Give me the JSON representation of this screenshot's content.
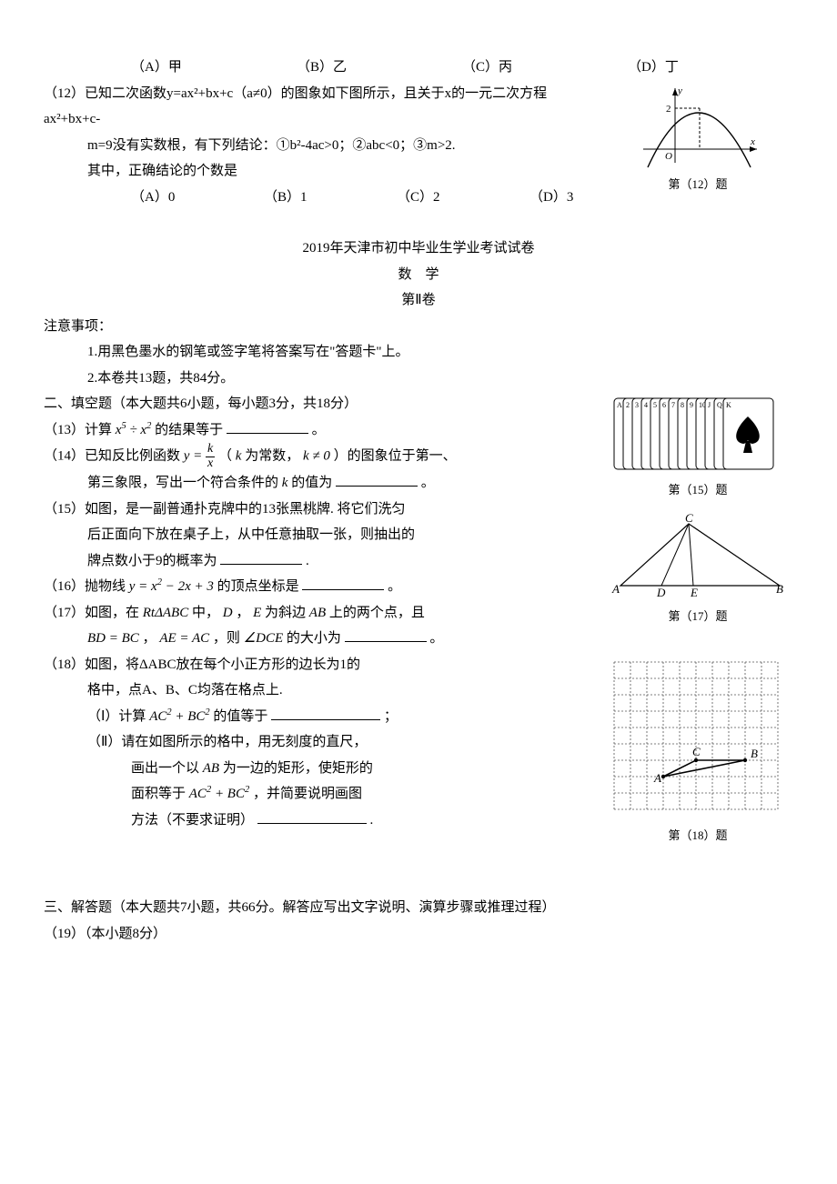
{
  "q11_choices": {
    "a": "（A）甲",
    "b": "（B）乙",
    "c": "（C）丙",
    "d": "（D）丁"
  },
  "q12": {
    "stem1": "（12）已知二次函数y=ax²+bx+c（a≠0）的图象如下图所示，且关于x的一元二次方程ax²+bx+c-",
    "stem2": "m=9没有实数根，有下列结论：①b²-4ac>0；②abc<0；③m>2.",
    "stem3": "其中，正确结论的个数是",
    "a": "（A）0",
    "b": "（B）1",
    "c": "（C）2",
    "d": "（D）3",
    "caption": "第（12）题"
  },
  "header": {
    "l1": "2019年天津市初中毕业生学业考试试卷",
    "l2": "数　学",
    "l3": "第Ⅱ卷"
  },
  "notice": {
    "title": "注意事项：",
    "i1": "1.用黑色墨水的钢笔或签字笔将答案写在\"答题卡\"上。",
    "i2": "2.本卷共13题，共84分。"
  },
  "sec2": {
    "title": "二、填空题（本大题共6小题，每小题3分，共18分）"
  },
  "q13": {
    "pre": "（13）计算",
    "expr": "x⁵ ÷ x²",
    "post": "的结果等于",
    "dot": "。"
  },
  "q14": {
    "p1_pre": "（14）已知反比例函数",
    "p1_mid": "（",
    "kconst": "k",
    "p1_mid2": "为常数，",
    "kne": "k ≠ 0",
    "p1_end": "）的图象位于第一、",
    "p2": "第三象限，写出一个符合条件的",
    "kv": "k",
    "p2_end": "的值为",
    "dot": "。"
  },
  "q15": {
    "l1": "（15）如图，是一副普通扑克牌中的13张黑桃牌. 将它们洗匀",
    "l2": "后正面向下放在桌子上，从中任意抽取一张，则抽出的",
    "l3": "牌点数小于9的概率为",
    "dot2": ".",
    "caption": "第（15）题"
  },
  "q16": {
    "pre": "（16）抛物线",
    "expr": "y = x² − 2x + 3",
    "post": "的顶点坐标是",
    "dot": "。"
  },
  "q17": {
    "l1_pre": "（17）如图，在",
    "rt": "RtΔABC",
    "l1_mid": "中，",
    "de": "D",
    "comma": "，",
    "e": "E",
    "l1_mid2": "为斜边",
    "ab": "AB",
    "l1_end": "上的两个点，且",
    "l2_a": "BD = BC",
    "l2_b": "AE = AC",
    "l2_mid": "，则",
    "ang": "∠DCE",
    "l2_end": "的大小为",
    "dot": "。",
    "caption": "第（17）题"
  },
  "q18": {
    "l1": "（18）如图，将ΔABC放在每个小正方形的边长为1的",
    "l2": "格中，点A、B、C均落在格点上.",
    "i_pre": "（Ⅰ）计算",
    "i_expr": "AC² + BC²",
    "i_post": "的值等于",
    "semi": "；",
    "ii_l1": "（Ⅱ）请在如图所示的格中，用无刻度的直尺，",
    "ii_l2_pre": "画出一个以",
    "ii_ab": "AB",
    "ii_l2_post": "为一边的矩形，使矩形的",
    "ii_l3_pre": "面积等于",
    "ii_expr": "AC² + BC²",
    "ii_l3_post": "，并简要说明画图",
    "ii_l4": "方法（不要求证明）",
    "dot": ".",
    "caption": "第（18）题",
    "labels": {
      "A": "A",
      "B": "B",
      "C": "C"
    }
  },
  "sec3": {
    "title": "三、解答题（本大题共7小题，共66分。解答应写出文字说明、演算步骤或推理过程）"
  },
  "q19": {
    "title": "（19）（本小题8分）"
  },
  "fig12": {
    "ylabel": "y",
    "xlabel": "x",
    "origin": "O",
    "ymax": 2,
    "axis_color": "#000",
    "curve_color": "#000",
    "bg": "#fff"
  },
  "fig15": {
    "card_count": 13,
    "border": "#000",
    "fill": "#fff"
  },
  "fig17": {
    "labels": {
      "A": "A",
      "B": "B",
      "C": "C",
      "D": "D",
      "E": "E"
    },
    "stroke": "#000"
  },
  "fig18": {
    "grid_cols": 10,
    "grid_rows": 9,
    "cell": 18,
    "grid_color": "#555",
    "bg": "#fff",
    "A": [
      3,
      7
    ],
    "B": [
      8,
      6
    ],
    "C": [
      5,
      6
    ]
  }
}
